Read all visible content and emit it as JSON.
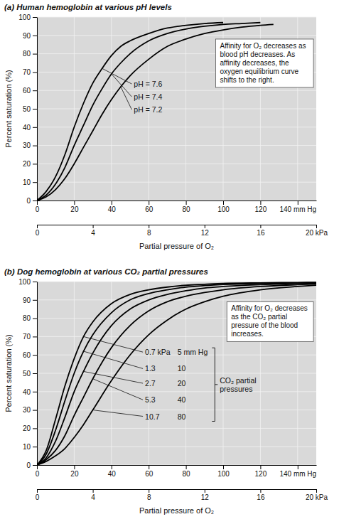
{
  "chart_data": [
    {
      "type": "line",
      "title": "(a) Human hemoglobin at various pH levels",
      "x": [
        0,
        5,
        10,
        15,
        20,
        25,
        30,
        35,
        40,
        45,
        50,
        60,
        70,
        80,
        90,
        100,
        110,
        120,
        127
      ],
      "series": [
        {
          "name": "pH = 7.6",
          "color": "#000000",
          "values": [
            0,
            5,
            13,
            25,
            40,
            53,
            64,
            72,
            79,
            84,
            87,
            91,
            94,
            95.5,
            96.5,
            97,
            null,
            null,
            null
          ]
        },
        {
          "name": "pH = 7.4",
          "color": "#000000",
          "values": [
            0,
            3,
            9,
            18,
            30,
            41,
            52,
            61,
            69,
            75,
            80,
            87,
            91,
            93.5,
            95,
            96,
            96.5,
            97,
            null
          ]
        },
        {
          "name": "pH = 7.2",
          "color": "#000000",
          "values": [
            0,
            2,
            6,
            12,
            20,
            29,
            38,
            47,
            55,
            62,
            68,
            77,
            84,
            88,
            91,
            93,
            94.5,
            95.5,
            96
          ]
        }
      ],
      "xlim": [
        0,
        150
      ],
      "xticks": [
        0,
        20,
        40,
        60,
        80,
        100,
        120,
        {
          "value": 140,
          "label": "140 mm Hg"
        }
      ],
      "x2lim": [
        0,
        20
      ],
      "x2ticks": [
        0,
        4,
        8,
        12,
        16,
        {
          "value": 20,
          "label": "20 kPa"
        }
      ],
      "x_label": "Partial pressure of O₂",
      "ylim": [
        0,
        100
      ],
      "yticks": [
        0,
        10,
        20,
        30,
        40,
        50,
        60,
        70,
        80,
        90,
        100
      ],
      "y_label": "Percent saturation (%)",
      "grid": true,
      "annotations": [
        "Affinity for O₂ decreases as blood pH decreases. As affinity decreases, the oxygen equilibrium curve shifts to the right."
      ]
    },
    {
      "type": "line",
      "title": "(b) Dog hemoglobin at various CO₂ partial pressures",
      "x": [
        0,
        5,
        10,
        15,
        20,
        25,
        30,
        40,
        50,
        60,
        70,
        80,
        90,
        100,
        120,
        140,
        150
      ],
      "series": [
        {
          "name": "0.7 kPa",
          "name_mm_hg": "5 mm Hg",
          "color": "#000000",
          "values": [
            0,
            8,
            25,
            43,
            58,
            70,
            78,
            88,
            93,
            95.5,
            97,
            98,
            98.5,
            99,
            99.3,
            99.5,
            99.6
          ]
        },
        {
          "name": "1.3",
          "name_mm_hg": "10",
          "color": "#000000",
          "values": [
            0,
            6,
            19,
            35,
            50,
            62,
            71,
            83,
            90,
            93.5,
            95.5,
            97,
            97.8,
            98.4,
            99,
            99.3,
            99.5
          ]
        },
        {
          "name": "2.7",
          "name_mm_hg": "20",
          "color": "#000000",
          "values": [
            0,
            4,
            13,
            26,
            40,
            51,
            61,
            76,
            85,
            90,
            93,
            95,
            96.5,
            97.3,
            98.3,
            99,
            99.2
          ]
        },
        {
          "name": "5.3",
          "name_mm_hg": "40",
          "color": "#000000",
          "values": [
            0,
            3,
            8,
            16,
            27,
            37,
            47,
            64,
            76,
            84,
            89,
            92,
            94,
            95.5,
            97.3,
            98.3,
            98.7
          ]
        },
        {
          "name": "10.7",
          "name_mm_hg": "80",
          "color": "#000000",
          "values": [
            0,
            2,
            5,
            9,
            15,
            22,
            30,
            46,
            60,
            71,
            79,
            85,
            89,
            92,
            95.5,
            97.3,
            98
          ]
        }
      ],
      "series_label": "CO₂ partial pressures",
      "xlim": [
        0,
        150
      ],
      "xticks": [
        0,
        20,
        40,
        60,
        80,
        100,
        120,
        {
          "value": 140,
          "label": "140 mm Hg"
        }
      ],
      "x2lim": [
        0,
        20
      ],
      "x2ticks": [
        0,
        4,
        8,
        12,
        16,
        {
          "value": 20,
          "label": "20 kPa"
        }
      ],
      "x_label": "Partial pressure of O₂",
      "ylim": [
        0,
        100
      ],
      "yticks": [
        0,
        10,
        20,
        30,
        40,
        50,
        60,
        70,
        80,
        90,
        100
      ],
      "y_label": "Percent saturation (%)",
      "grid": true,
      "annotations": [
        "Affinity for O₂ decreases as the CO₂ partial pressure of the blood increases."
      ]
    }
  ]
}
